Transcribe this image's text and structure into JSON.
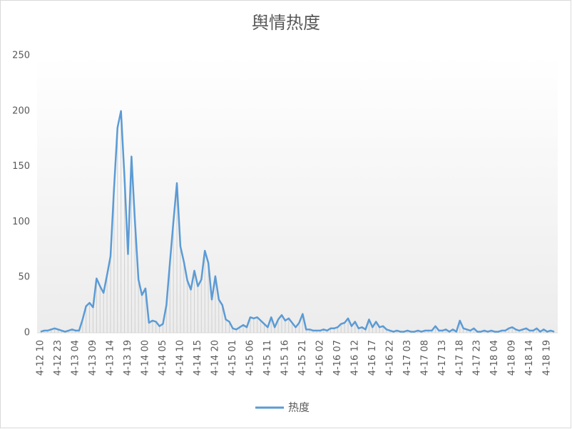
{
  "chart_data": {
    "type": "line",
    "title": "舆情热度",
    "categories": [
      "4-12 10",
      null,
      null,
      null,
      null,
      "4-12 23",
      null,
      null,
      null,
      null,
      "4-13 04",
      null,
      null,
      null,
      null,
      "4-13 09",
      null,
      null,
      null,
      null,
      "4-13 14",
      null,
      null,
      null,
      null,
      "4-13 19",
      null,
      null,
      null,
      null,
      "4-14 00",
      null,
      null,
      null,
      null,
      "4-14 05",
      null,
      null,
      null,
      null,
      "4-14 10",
      null,
      null,
      null,
      null,
      "4-14 15",
      null,
      null,
      null,
      null,
      "4-14 20",
      null,
      null,
      null,
      null,
      "4-15 01",
      null,
      null,
      null,
      null,
      "4-15 06",
      null,
      null,
      null,
      null,
      "4-15 11",
      null,
      null,
      null,
      null,
      "4-15 16",
      null,
      null,
      null,
      null,
      "4-15 21",
      null,
      null,
      null,
      null,
      "4-16 02",
      null,
      null,
      null,
      null,
      "4-16 07",
      null,
      null,
      null,
      null,
      "4-16 12",
      null,
      null,
      null,
      null,
      "4-16 17",
      null,
      null,
      null,
      null,
      "4-16 22",
      null,
      null,
      null,
      null,
      "4-17 03",
      null,
      null,
      null,
      null,
      "4-17 08",
      null,
      null,
      null,
      null,
      "4-17 13",
      null,
      null,
      null,
      null,
      "4-17 18",
      null,
      null,
      null,
      null,
      "4-17 23",
      null,
      null,
      null,
      null,
      "4-18 04",
      null,
      null,
      null,
      null,
      "4-18 09",
      null,
      null,
      null,
      null,
      "4-18 14",
      null,
      null,
      null,
      null,
      "4-18 19",
      null,
      null
    ],
    "series": [
      {
        "name": "热度",
        "color": "#5b9bd5",
        "values": [
          1,
          2,
          2,
          3,
          4,
          3,
          2,
          1,
          2,
          3,
          2,
          2,
          12,
          24,
          27,
          23,
          49,
          42,
          36,
          52,
          69,
          130,
          185,
          200,
          140,
          71,
          159,
          100,
          48,
          34,
          40,
          9,
          11,
          10,
          6,
          8,
          25,
          63,
          100,
          135,
          78,
          64,
          47,
          39,
          56,
          42,
          48,
          74,
          63,
          30,
          51,
          30,
          25,
          12,
          10,
          4,
          3,
          5,
          7,
          5,
          14,
          13,
          14,
          11,
          8,
          5,
          14,
          5,
          12,
          16,
          11,
          13,
          9,
          5,
          9,
          17,
          3,
          3,
          2,
          2,
          2,
          3,
          2,
          4,
          4,
          5,
          8,
          9,
          13,
          6,
          10,
          4,
          5,
          3,
          12,
          5,
          10,
          5,
          6,
          3,
          2,
          1,
          2,
          1,
          1,
          2,
          1,
          1,
          2,
          1,
          2,
          2,
          2,
          6,
          2,
          2,
          3,
          1,
          3,
          1,
          11,
          4,
          3,
          2,
          4,
          1,
          1,
          2,
          1,
          2,
          1,
          1,
          2,
          2,
          4,
          5,
          3,
          2,
          3,
          4,
          2,
          2,
          4,
          1,
          3,
          1,
          2,
          1
        ]
      }
    ],
    "ylim": [
      0,
      250
    ],
    "yticks": [
      0,
      50,
      100,
      150,
      200,
      250
    ],
    "legend": "bottom"
  }
}
